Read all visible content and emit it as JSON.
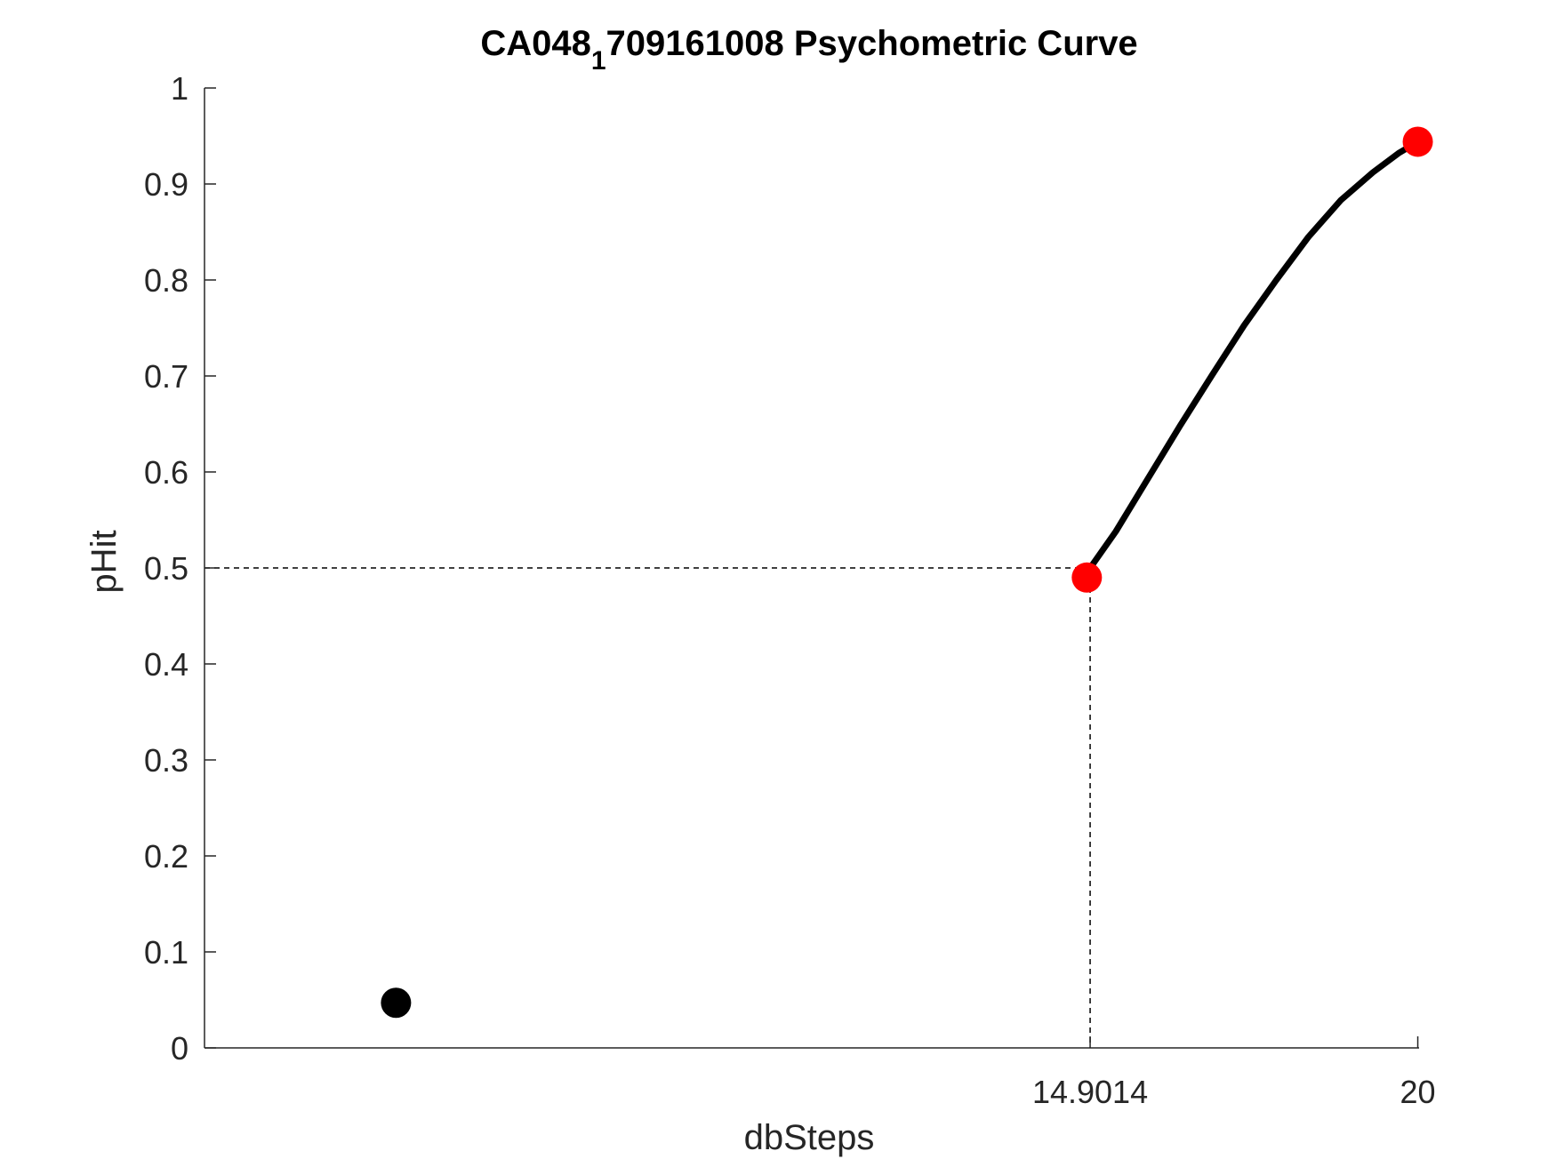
{
  "chart_data": {
    "type": "line",
    "title": {
      "prefix": "CA048",
      "subscript": "1",
      "suffix": "709161008 Psychometric Curve"
    },
    "xlabel": "dbSteps",
    "ylabel": "pHit",
    "xlim": [
      1.12,
      20.02
    ],
    "ylim": [
      0,
      1
    ],
    "x_ticks": [
      {
        "value": 14.9014,
        "label": "14.9014"
      },
      {
        "value": 20,
        "label": "20"
      }
    ],
    "y_ticks": [
      {
        "value": 0,
        "label": "0"
      },
      {
        "value": 0.1,
        "label": "0.1"
      },
      {
        "value": 0.2,
        "label": "0.2"
      },
      {
        "value": 0.3,
        "label": "0.3"
      },
      {
        "value": 0.4,
        "label": "0.4"
      },
      {
        "value": 0.5,
        "label": "0.5"
      },
      {
        "value": 0.6,
        "label": "0.6"
      },
      {
        "value": 0.7,
        "label": "0.7"
      },
      {
        "value": 0.8,
        "label": "0.8"
      },
      {
        "value": 0.9,
        "label": "0.9"
      },
      {
        "value": 1,
        "label": "1"
      }
    ],
    "series": [
      {
        "kind": "fit-curve",
        "color": "#000000",
        "x": [
          14.85,
          15.3,
          15.8,
          16.3,
          16.8,
          17.3,
          17.8,
          18.3,
          18.8,
          19.3,
          19.7,
          20.0
        ],
        "y": [
          0.495,
          0.538,
          0.593,
          0.648,
          0.701,
          0.753,
          0.8,
          0.845,
          0.883,
          0.912,
          0.932,
          0.944
        ]
      },
      {
        "kind": "data-points",
        "color": "#ff0000",
        "x": [
          14.85,
          20.0
        ],
        "y": [
          0.49,
          0.944
        ]
      },
      {
        "kind": "data-points",
        "color": "#000000",
        "x": [
          4.1
        ],
        "y": [
          0.047
        ]
      }
    ],
    "threshold": {
      "x": 14.9014,
      "y": 0.5,
      "style": "dashed",
      "color": "#000000"
    },
    "grid": false,
    "legend": "none"
  }
}
